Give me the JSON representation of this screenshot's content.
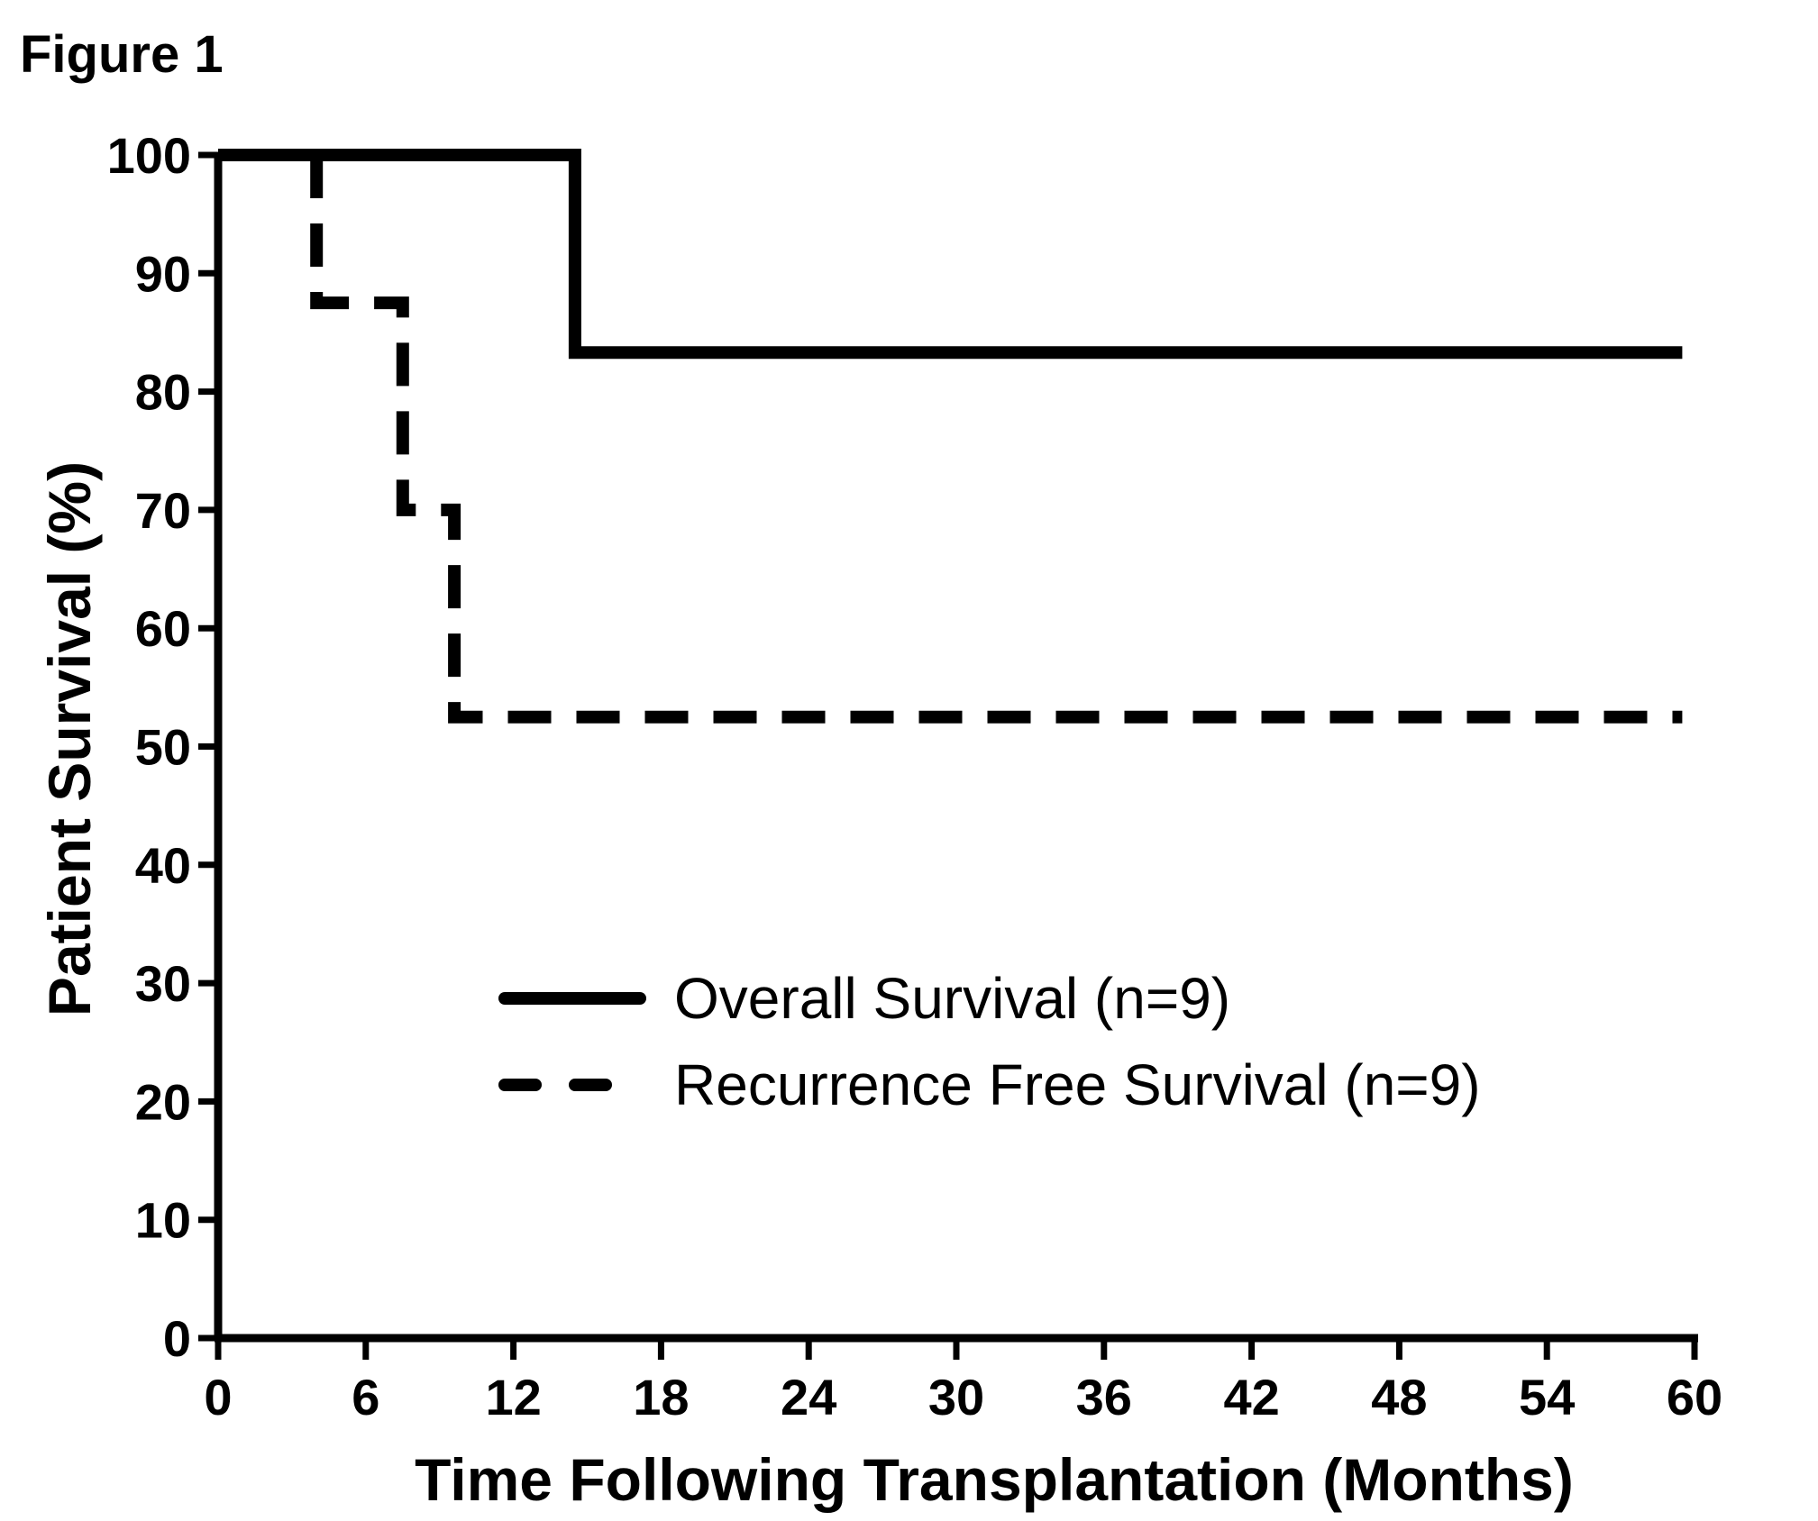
{
  "figure_label": "Figure 1",
  "chart_data": {
    "type": "line",
    "step": true,
    "xlabel": "Time Following Transplantation (Months)",
    "ylabel": "Patient Survival (%)",
    "xlim": [
      0,
      60
    ],
    "ylim": [
      0,
      100
    ],
    "x_ticks": [
      0,
      6,
      12,
      18,
      24,
      30,
      36,
      42,
      48,
      54,
      60
    ],
    "y_ticks": [
      0,
      10,
      20,
      30,
      40,
      50,
      60,
      70,
      80,
      90,
      100
    ],
    "grid": false,
    "legend_position": "center-right",
    "series": [
      {
        "name": "Overall Survival (n=9)",
        "style": "solid",
        "color": "#000000",
        "points": [
          [
            0,
            100
          ],
          [
            14.5,
            100
          ],
          [
            14.5,
            83.3
          ],
          [
            59.5,
            83.3
          ]
        ]
      },
      {
        "name": "Recurrence Free Survival (n=9)",
        "style": "dashed",
        "color": "#000000",
        "points": [
          [
            4,
            100
          ],
          [
            4,
            87.5
          ],
          [
            7.5,
            87.5
          ],
          [
            7.5,
            70
          ],
          [
            9.6,
            70
          ],
          [
            9.6,
            52.5
          ],
          [
            59.5,
            52.5
          ]
        ]
      }
    ]
  }
}
